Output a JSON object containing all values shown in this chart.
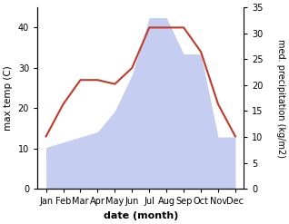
{
  "months": [
    "Jan",
    "Feb",
    "Mar",
    "Apr",
    "May",
    "Jun",
    "Jul",
    "Aug",
    "Sep",
    "Oct",
    "Nov",
    "Dec"
  ],
  "temperature": [
    13,
    21,
    27,
    27,
    26,
    30,
    40,
    40,
    40,
    34,
    21,
    13
  ],
  "precipitation": [
    8,
    9,
    10,
    11,
    15,
    22,
    33,
    33,
    26,
    26,
    10,
    10
  ],
  "temp_color": "#c0392b",
  "precip_fill_color": "#c5cdf0",
  "left_ylim": [
    0,
    45
  ],
  "right_ylim": [
    0,
    35
  ],
  "left_yticks": [
    0,
    10,
    20,
    30,
    40
  ],
  "right_yticks": [
    0,
    5,
    10,
    15,
    20,
    25,
    30,
    35
  ],
  "xlabel": "date (month)",
  "ylabel_left": "max temp (C)",
  "ylabel_right": "med. precipitation (kg/m2)",
  "figsize": [
    3.18,
    2.47
  ],
  "dpi": 100
}
